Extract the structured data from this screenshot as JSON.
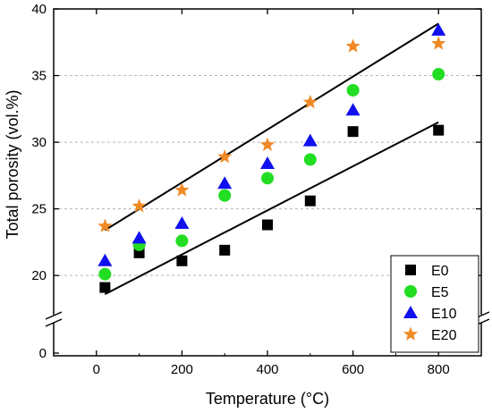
{
  "chart_data": {
    "type": "scatter",
    "xlabel": "Temperature (°C)",
    "ylabel": "Total porosity (vol.%)",
    "xlim": [
      -100,
      900
    ],
    "xticks": [
      0,
      200,
      400,
      600,
      800
    ],
    "ylim_upper": [
      18,
      40
    ],
    "yticks_upper": [
      20,
      25,
      30,
      35,
      40
    ],
    "y_break": true,
    "y_lower_tick": 0,
    "grid": "horizontal dashed",
    "legend_position": "bottom-right",
    "series": [
      {
        "name": "E0",
        "marker": "square",
        "color": "#000000",
        "x": [
          20,
          100,
          200,
          300,
          400,
          500,
          600,
          800
        ],
        "y": [
          19.1,
          21.7,
          21.1,
          21.9,
          23.8,
          25.6,
          30.8,
          30.9
        ]
      },
      {
        "name": "E5",
        "marker": "circle",
        "color": "#22dd22",
        "x": [
          20,
          100,
          200,
          300,
          400,
          500,
          600,
          800
        ],
        "y": [
          20.1,
          22.3,
          22.6,
          26.0,
          27.3,
          28.7,
          33.9,
          35.1
        ]
      },
      {
        "name": "E10",
        "marker": "triangle",
        "color": "#1010ee",
        "x": [
          20,
          100,
          200,
          300,
          400,
          500,
          600,
          800
        ],
        "y": [
          21.1,
          22.8,
          23.9,
          26.9,
          28.4,
          30.1,
          32.4,
          38.4
        ]
      },
      {
        "name": "E20",
        "marker": "star",
        "color": "#f08a24",
        "x": [
          20,
          100,
          200,
          300,
          400,
          500,
          600,
          800
        ],
        "y": [
          23.7,
          25.2,
          26.4,
          28.9,
          29.8,
          33.0,
          37.2,
          37.4
        ]
      }
    ],
    "trend_lines": [
      {
        "x": [
          20,
          800
        ],
        "y": [
          18.6,
          31.5
        ]
      },
      {
        "x": [
          20,
          800
        ],
        "y": [
          23.4,
          38.9
        ]
      }
    ]
  }
}
